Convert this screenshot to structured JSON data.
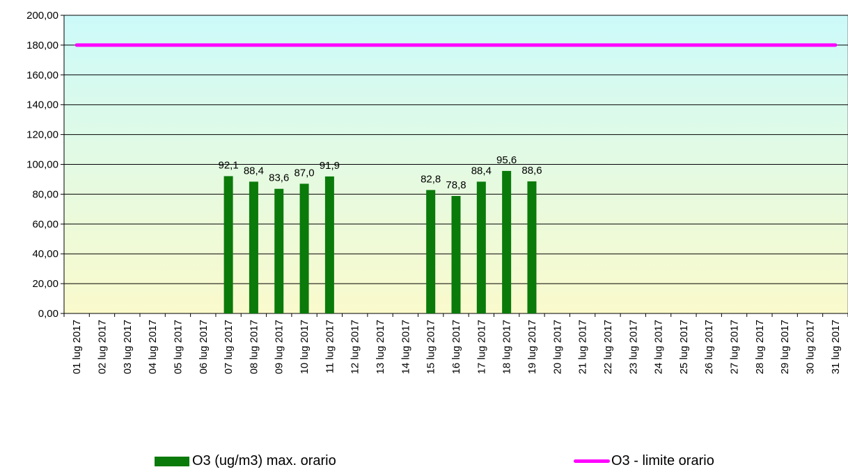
{
  "chart_data": {
    "type": "bar",
    "categories": [
      "01 lug 2017",
      "02 lug 2017",
      "03 lug 2017",
      "04 lug 2017",
      "05 lug 2017",
      "06 lug 2017",
      "07 lug 2017",
      "08 lug 2017",
      "09 lug 2017",
      "10 lug 2017",
      "11 lug 2017",
      "12 lug 2017",
      "13 lug 2017",
      "14 lug 2017",
      "15 lug 2017",
      "16 lug 2017",
      "17 lug 2017",
      "18 lug 2017",
      "19 lug 2017",
      "20 lug 2017",
      "21 lug 2017",
      "22 lug 2017",
      "23 lug 2017",
      "24 lug 2017",
      "25 lug 2017",
      "26 lug 2017",
      "27 lug 2017",
      "28 lug 2017",
      "29 lug 2017",
      "30 lug 2017",
      "31 lug 2017"
    ],
    "series": [
      {
        "name": "O3 (ug/m3) max. orario",
        "type": "bar",
        "color": "#0a7a0a",
        "values": [
          null,
          null,
          null,
          null,
          null,
          null,
          92.1,
          88.4,
          83.6,
          87.0,
          91.9,
          null,
          null,
          null,
          82.8,
          78.8,
          88.4,
          95.6,
          88.6,
          null,
          null,
          null,
          null,
          null,
          null,
          null,
          null,
          null,
          null,
          null,
          null
        ],
        "labels": [
          "",
          "",
          "",
          "",
          "",
          "",
          "92,1",
          "88,4",
          "83,6",
          "87,0",
          "91,9",
          "",
          "",
          "",
          "82,8",
          "78,8",
          "88,4",
          "95,6",
          "88,6",
          "",
          "",
          "",
          "",
          "",
          "",
          "",
          "",
          "",
          "",
          "",
          ""
        ]
      },
      {
        "name": "O3 - limite orario",
        "type": "line",
        "color": "#ff00ff",
        "values": [
          180,
          180,
          180,
          180,
          180,
          180,
          180,
          180,
          180,
          180,
          180,
          180,
          180,
          180,
          180,
          180,
          180,
          180,
          180,
          180,
          180,
          180,
          180,
          180,
          180,
          180,
          180,
          180,
          180,
          180,
          180
        ]
      }
    ],
    "ylim": [
      0,
      200
    ],
    "yticks": [
      0,
      20,
      40,
      60,
      80,
      100,
      120,
      140,
      160,
      180,
      200
    ],
    "ytick_labels": [
      "0,00",
      "20,00",
      "40,00",
      "60,00",
      "80,00",
      "100,00",
      "120,00",
      "140,00",
      "160,00",
      "180,00",
      "200,00"
    ],
    "grid": true,
    "legend_position": "bottom",
    "background_gradient": [
      "#ccfafa",
      "#fafacc"
    ]
  }
}
